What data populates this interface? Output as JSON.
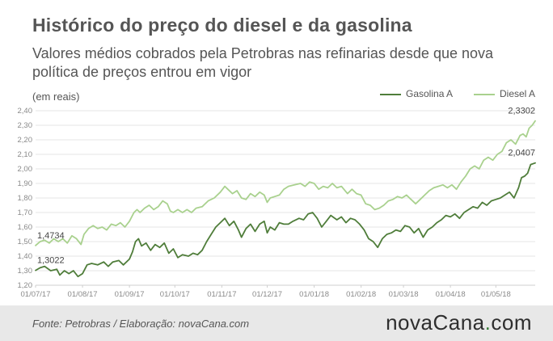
{
  "title": "Histórico do preço do diesel e da gasolina",
  "subtitle": "Valores médios cobrados pela Petrobras nas refinarias desde que nova política de preços entrou em vigor",
  "unit_label": "(em reais)",
  "footer": {
    "source": "Fonte:  Petrobras  / Elaboração:  novaCana.com",
    "logo_main": "novaCana",
    "logo_dot": ".",
    "logo_tld": "com"
  },
  "colors": {
    "gasolina": "#4f7d3a",
    "diesel": "#a9d18e",
    "grid": "#e6e6e6",
    "axis_text": "#8a8a8a"
  },
  "chart_data": {
    "type": "line",
    "ylim": [
      1.2,
      2.4
    ],
    "y_ticks": [
      "1,20",
      "1,30",
      "1,40",
      "1,50",
      "1,60",
      "1,70",
      "1,80",
      "1,90",
      "2,00",
      "2,10",
      "2,20",
      "2,30",
      "2,40"
    ],
    "x_range_days": [
      0,
      330
    ],
    "x_ticks": [
      {
        "label": "01/07/17",
        "day": 0
      },
      {
        "label": "01/08/17",
        "day": 31
      },
      {
        "label": "01/09/17",
        "day": 62
      },
      {
        "label": "01/10/17",
        "day": 92
      },
      {
        "label": "01/11/17",
        "day": 123
      },
      {
        "label": "01/12/17",
        "day": 153
      },
      {
        "label": "01/01/18",
        "day": 184
      },
      {
        "label": "01/02/18",
        "day": 215
      },
      {
        "label": "01/03/18",
        "day": 243
      },
      {
        "label": "01/04/18",
        "day": 274
      },
      {
        "label": "01/05/18",
        "day": 304
      }
    ],
    "grid": true,
    "legend_position": "top-right",
    "series": [
      {
        "name": "Gasolina A",
        "points": [
          [
            0,
            1.3022
          ],
          [
            3,
            1.32
          ],
          [
            6,
            1.33
          ],
          [
            10,
            1.3
          ],
          [
            14,
            1.31
          ],
          [
            16,
            1.27
          ],
          [
            19,
            1.3
          ],
          [
            22,
            1.28
          ],
          [
            25,
            1.3
          ],
          [
            28,
            1.26
          ],
          [
            31,
            1.28
          ],
          [
            34,
            1.34
          ],
          [
            37,
            1.35
          ],
          [
            41,
            1.34
          ],
          [
            45,
            1.36
          ],
          [
            48,
            1.33
          ],
          [
            51,
            1.36
          ],
          [
            55,
            1.37
          ],
          [
            58,
            1.34
          ],
          [
            62,
            1.38
          ],
          [
            64,
            1.43
          ],
          [
            66,
            1.5
          ],
          [
            68,
            1.52
          ],
          [
            70,
            1.47
          ],
          [
            73,
            1.49
          ],
          [
            76,
            1.44
          ],
          [
            79,
            1.48
          ],
          [
            82,
            1.46
          ],
          [
            85,
            1.49
          ],
          [
            88,
            1.42
          ],
          [
            91,
            1.45
          ],
          [
            94,
            1.39
          ],
          [
            97,
            1.41
          ],
          [
            101,
            1.4
          ],
          [
            104,
            1.42
          ],
          [
            107,
            1.41
          ],
          [
            110,
            1.44
          ],
          [
            113,
            1.5
          ],
          [
            116,
            1.55
          ],
          [
            119,
            1.6
          ],
          [
            122,
            1.63
          ],
          [
            125,
            1.66
          ],
          [
            128,
            1.61
          ],
          [
            131,
            1.64
          ],
          [
            134,
            1.58
          ],
          [
            136,
            1.53
          ],
          [
            139,
            1.59
          ],
          [
            142,
            1.62
          ],
          [
            145,
            1.57
          ],
          [
            148,
            1.62
          ],
          [
            151,
            1.64
          ],
          [
            153,
            1.56
          ],
          [
            155,
            1.6
          ],
          [
            158,
            1.58
          ],
          [
            161,
            1.63
          ],
          [
            164,
            1.62
          ],
          [
            167,
            1.62
          ],
          [
            170,
            1.64
          ],
          [
            174,
            1.66
          ],
          [
            177,
            1.65
          ],
          [
            180,
            1.69
          ],
          [
            183,
            1.7
          ],
          [
            186,
            1.66
          ],
          [
            189,
            1.6
          ],
          [
            192,
            1.64
          ],
          [
            195,
            1.68
          ],
          [
            199,
            1.65
          ],
          [
            202,
            1.67
          ],
          [
            205,
            1.63
          ],
          [
            208,
            1.66
          ],
          [
            211,
            1.65
          ],
          [
            214,
            1.62
          ],
          [
            217,
            1.58
          ],
          [
            220,
            1.52
          ],
          [
            223,
            1.5
          ],
          [
            226,
            1.46
          ],
          [
            229,
            1.52
          ],
          [
            232,
            1.55
          ],
          [
            235,
            1.56
          ],
          [
            238,
            1.58
          ],
          [
            241,
            1.57
          ],
          [
            244,
            1.61
          ],
          [
            247,
            1.6
          ],
          [
            250,
            1.56
          ],
          [
            253,
            1.59
          ],
          [
            256,
            1.53
          ],
          [
            259,
            1.58
          ],
          [
            262,
            1.6
          ],
          [
            265,
            1.63
          ],
          [
            268,
            1.65
          ],
          [
            271,
            1.68
          ],
          [
            274,
            1.67
          ],
          [
            277,
            1.69
          ],
          [
            280,
            1.66
          ],
          [
            283,
            1.7
          ],
          [
            286,
            1.72
          ],
          [
            289,
            1.74
          ],
          [
            292,
            1.73
          ],
          [
            295,
            1.77
          ],
          [
            298,
            1.75
          ],
          [
            301,
            1.78
          ],
          [
            304,
            1.79
          ],
          [
            307,
            1.8
          ],
          [
            310,
            1.82
          ],
          [
            313,
            1.84
          ],
          [
            316,
            1.8
          ],
          [
            319,
            1.87
          ],
          [
            321,
            1.94
          ],
          [
            323,
            1.95
          ],
          [
            325,
            1.97
          ],
          [
            327,
            2.03
          ],
          [
            330,
            2.0407
          ]
        ]
      },
      {
        "name": "Diesel A",
        "points": [
          [
            0,
            1.4734
          ],
          [
            3,
            1.5
          ],
          [
            6,
            1.51
          ],
          [
            9,
            1.49
          ],
          [
            12,
            1.52
          ],
          [
            15,
            1.5
          ],
          [
            18,
            1.52
          ],
          [
            21,
            1.49
          ],
          [
            24,
            1.54
          ],
          [
            27,
            1.52
          ],
          [
            30,
            1.48
          ],
          [
            32,
            1.55
          ],
          [
            35,
            1.59
          ],
          [
            38,
            1.61
          ],
          [
            41,
            1.59
          ],
          [
            44,
            1.6
          ],
          [
            47,
            1.58
          ],
          [
            50,
            1.62
          ],
          [
            53,
            1.61
          ],
          [
            56,
            1.63
          ],
          [
            59,
            1.6
          ],
          [
            62,
            1.64
          ],
          [
            65,
            1.7
          ],
          [
            67,
            1.72
          ],
          [
            69,
            1.7
          ],
          [
            72,
            1.73
          ],
          [
            75,
            1.75
          ],
          [
            78,
            1.72
          ],
          [
            81,
            1.74
          ],
          [
            84,
            1.78
          ],
          [
            87,
            1.76
          ],
          [
            89,
            1.71
          ],
          [
            91,
            1.7
          ],
          [
            94,
            1.72
          ],
          [
            97,
            1.7
          ],
          [
            100,
            1.72
          ],
          [
            103,
            1.7
          ],
          [
            106,
            1.73
          ],
          [
            110,
            1.74
          ],
          [
            114,
            1.78
          ],
          [
            118,
            1.8
          ],
          [
            122,
            1.84
          ],
          [
            125,
            1.88
          ],
          [
            127,
            1.86
          ],
          [
            130,
            1.83
          ],
          [
            133,
            1.85
          ],
          [
            136,
            1.8
          ],
          [
            139,
            1.79
          ],
          [
            142,
            1.83
          ],
          [
            145,
            1.81
          ],
          [
            148,
            1.84
          ],
          [
            151,
            1.82
          ],
          [
            153,
            1.77
          ],
          [
            155,
            1.8
          ],
          [
            158,
            1.81
          ],
          [
            161,
            1.82
          ],
          [
            164,
            1.86
          ],
          [
            167,
            1.88
          ],
          [
            171,
            1.89
          ],
          [
            175,
            1.9
          ],
          [
            178,
            1.88
          ],
          [
            181,
            1.91
          ],
          [
            184,
            1.9
          ],
          [
            187,
            1.86
          ],
          [
            190,
            1.88
          ],
          [
            193,
            1.87
          ],
          [
            196,
            1.9
          ],
          [
            199,
            1.87
          ],
          [
            202,
            1.88
          ],
          [
            206,
            1.83
          ],
          [
            209,
            1.86
          ],
          [
            212,
            1.83
          ],
          [
            215,
            1.82
          ],
          [
            218,
            1.76
          ],
          [
            221,
            1.75
          ],
          [
            224,
            1.72
          ],
          [
            227,
            1.73
          ],
          [
            230,
            1.75
          ],
          [
            233,
            1.78
          ],
          [
            236,
            1.79
          ],
          [
            239,
            1.81
          ],
          [
            242,
            1.8
          ],
          [
            245,
            1.82
          ],
          [
            248,
            1.79
          ],
          [
            251,
            1.76
          ],
          [
            254,
            1.79
          ],
          [
            257,
            1.82
          ],
          [
            260,
            1.85
          ],
          [
            263,
            1.87
          ],
          [
            266,
            1.88
          ],
          [
            269,
            1.89
          ],
          [
            272,
            1.87
          ],
          [
            275,
            1.89
          ],
          [
            278,
            1.86
          ],
          [
            281,
            1.91
          ],
          [
            284,
            1.95
          ],
          [
            287,
            2.0
          ],
          [
            290,
            2.02
          ],
          [
            293,
            2.0
          ],
          [
            296,
            2.06
          ],
          [
            299,
            2.08
          ],
          [
            302,
            2.06
          ],
          [
            305,
            2.1
          ],
          [
            308,
            2.12
          ],
          [
            311,
            2.18
          ],
          [
            314,
            2.2
          ],
          [
            317,
            2.17
          ],
          [
            320,
            2.23
          ],
          [
            322,
            2.24
          ],
          [
            324,
            2.22
          ],
          [
            326,
            2.28
          ],
          [
            328,
            2.3
          ],
          [
            330,
            2.3302
          ]
        ]
      }
    ],
    "annotations": [
      {
        "series": "Diesel A",
        "day": 0,
        "value": 1.4734,
        "label": "1,4734"
      },
      {
        "series": "Gasolina A",
        "day": 0,
        "value": 1.3022,
        "label": "1,3022"
      },
      {
        "series": "Diesel A",
        "day": 330,
        "value": 2.3302,
        "label": "2,3302"
      },
      {
        "series": "Gasolina A",
        "day": 330,
        "value": 2.0407,
        "label": "2,0407"
      }
    ]
  }
}
